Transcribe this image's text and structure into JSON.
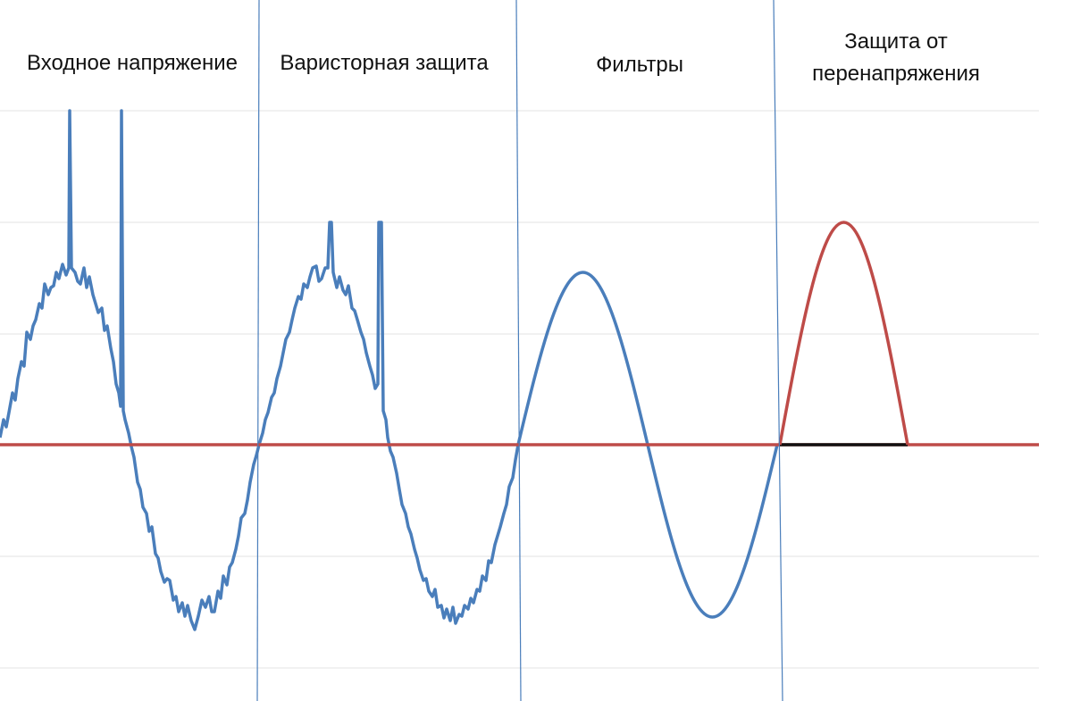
{
  "sections": [
    {
      "label": "Входное напряжение"
    },
    {
      "label": "Варисторная защита"
    },
    {
      "label": "Фильтры"
    },
    {
      "label_lines": [
        "Защита от",
        "перенапряжения"
      ]
    }
  ]
}
